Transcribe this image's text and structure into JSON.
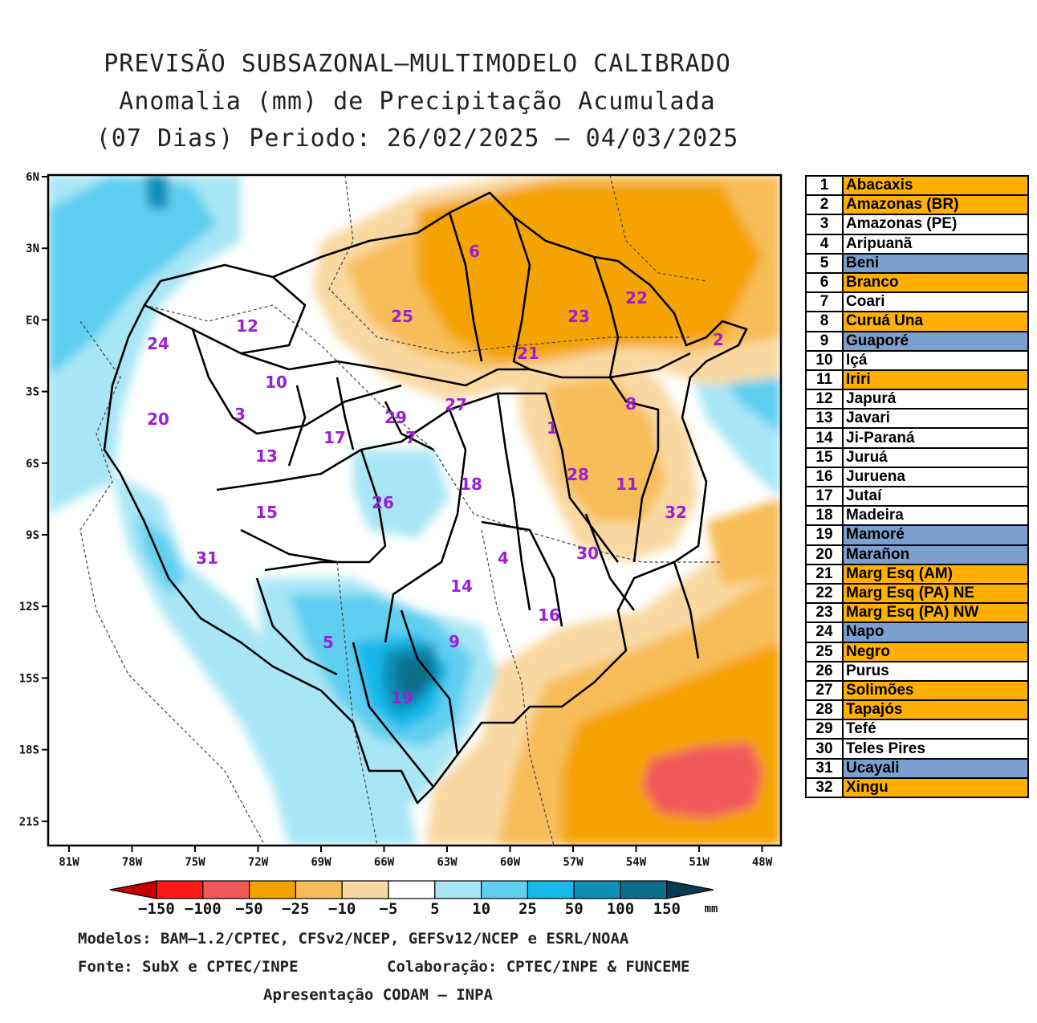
{
  "title": {
    "line1": "PREVISÃO SUBSAZONAL–MULTIMODELO CALIBRADO",
    "line2": "Anomalia (mm) de Precipitação Acumulada",
    "line3": "(07 Dias) Periodo: 26/02/2025 – 04/03/2025"
  },
  "map": {
    "lat_labels": [
      "6N",
      "3N",
      "EQ",
      "3S",
      "6S",
      "9S",
      "12S",
      "15S",
      "18S",
      "21S"
    ],
    "lon_labels": [
      "81W",
      "78W",
      "75W",
      "72W",
      "69W",
      "66W",
      "63W",
      "60W",
      "57W",
      "54W",
      "51W",
      "48W"
    ],
    "basin_numbers": [
      "1",
      "2",
      "3",
      "4",
      "5",
      "6",
      "7",
      "8",
      "9",
      "10",
      "11",
      "12",
      "13",
      "14",
      "15",
      "16",
      "17",
      "18",
      "19",
      "20",
      "21",
      "22",
      "23",
      "24",
      "25",
      "26",
      "27",
      "28",
      "29",
      "30",
      "31",
      "32"
    ]
  },
  "colorbar": {
    "ticks": [
      "−150",
      "−100",
      "−50",
      "−25",
      "−10",
      "−5",
      "5",
      "10",
      "25",
      "50",
      "100",
      "150"
    ],
    "unit": "mm",
    "colors": [
      "#c40000",
      "#ff1a1a",
      "#f25a5a",
      "#f5a300",
      "#f7bd58",
      "#f9d9a3",
      "#ffffff",
      "#a8e6f5",
      "#5fcff0",
      "#19b8ea",
      "#0f8eb6",
      "#0b6e8a",
      "#063c52"
    ]
  },
  "legend": [
    {
      "num": "1",
      "name": "Abacaxis",
      "color": "#ffb000"
    },
    {
      "num": "2",
      "name": "Amazonas (BR)",
      "color": "#ffb000"
    },
    {
      "num": "3",
      "name": "Amazonas (PE)",
      "color": "#ffffff"
    },
    {
      "num": "4",
      "name": "Aripuanã",
      "color": "#ffffff"
    },
    {
      "num": "5",
      "name": "Beni",
      "color": "#7ba0d0"
    },
    {
      "num": "6",
      "name": "Branco",
      "color": "#ffb000"
    },
    {
      "num": "7",
      "name": "Coari",
      "color": "#ffffff"
    },
    {
      "num": "8",
      "name": "Curuá Una",
      "color": "#ffb000"
    },
    {
      "num": "9",
      "name": "Guaporé",
      "color": "#7ba0d0"
    },
    {
      "num": "10",
      "name": "Içá",
      "color": "#ffffff"
    },
    {
      "num": "11",
      "name": "Iriri",
      "color": "#ffb000"
    },
    {
      "num": "12",
      "name": "Japurá",
      "color": "#ffffff"
    },
    {
      "num": "13",
      "name": "Javari",
      "color": "#ffffff"
    },
    {
      "num": "14",
      "name": "Ji-Paraná",
      "color": "#ffffff"
    },
    {
      "num": "15",
      "name": "Juruá",
      "color": "#ffffff"
    },
    {
      "num": "16",
      "name": "Juruena",
      "color": "#ffffff"
    },
    {
      "num": "17",
      "name": "Jutaí",
      "color": "#ffffff"
    },
    {
      "num": "18",
      "name": "Madeira",
      "color": "#ffffff"
    },
    {
      "num": "19",
      "name": "Mamoré",
      "color": "#7ba0d0"
    },
    {
      "num": "20",
      "name": "Marañon",
      "color": "#7ba0d0"
    },
    {
      "num": "21",
      "name": "Marg Esq (AM)",
      "color": "#ffb000"
    },
    {
      "num": "22",
      "name": "Marg Esq (PA) NE",
      "color": "#ffb000"
    },
    {
      "num": "23",
      "name": "Marg Esq (PA) NW",
      "color": "#ffb000"
    },
    {
      "num": "24",
      "name": "Napo",
      "color": "#7ba0d0"
    },
    {
      "num": "25",
      "name": "Negro",
      "color": "#ffb000"
    },
    {
      "num": "26",
      "name": "Purus",
      "color": "#ffffff"
    },
    {
      "num": "27",
      "name": "Solimões",
      "color": "#ffb000"
    },
    {
      "num": "28",
      "name": "Tapajós",
      "color": "#ffb000"
    },
    {
      "num": "29",
      "name": "Tefé",
      "color": "#ffffff"
    },
    {
      "num": "30",
      "name": "Teles Pires",
      "color": "#ffffff"
    },
    {
      "num": "31",
      "name": "Ucayali",
      "color": "#7ba0d0"
    },
    {
      "num": "32",
      "name": "Xingu",
      "color": "#ffb000"
    }
  ],
  "footer": {
    "models": "Modelos: BAM–1.2/CPTEC, CFSv2/NCEP, GEFSv12/NCEP e ESRL/NOAA",
    "source": "Fonte: SubX e CPTEC/INPE",
    "collab": "Colaboração: CPTEC/INPE & FUNCEME",
    "presentation": "Apresentação CODAM – INPA"
  }
}
